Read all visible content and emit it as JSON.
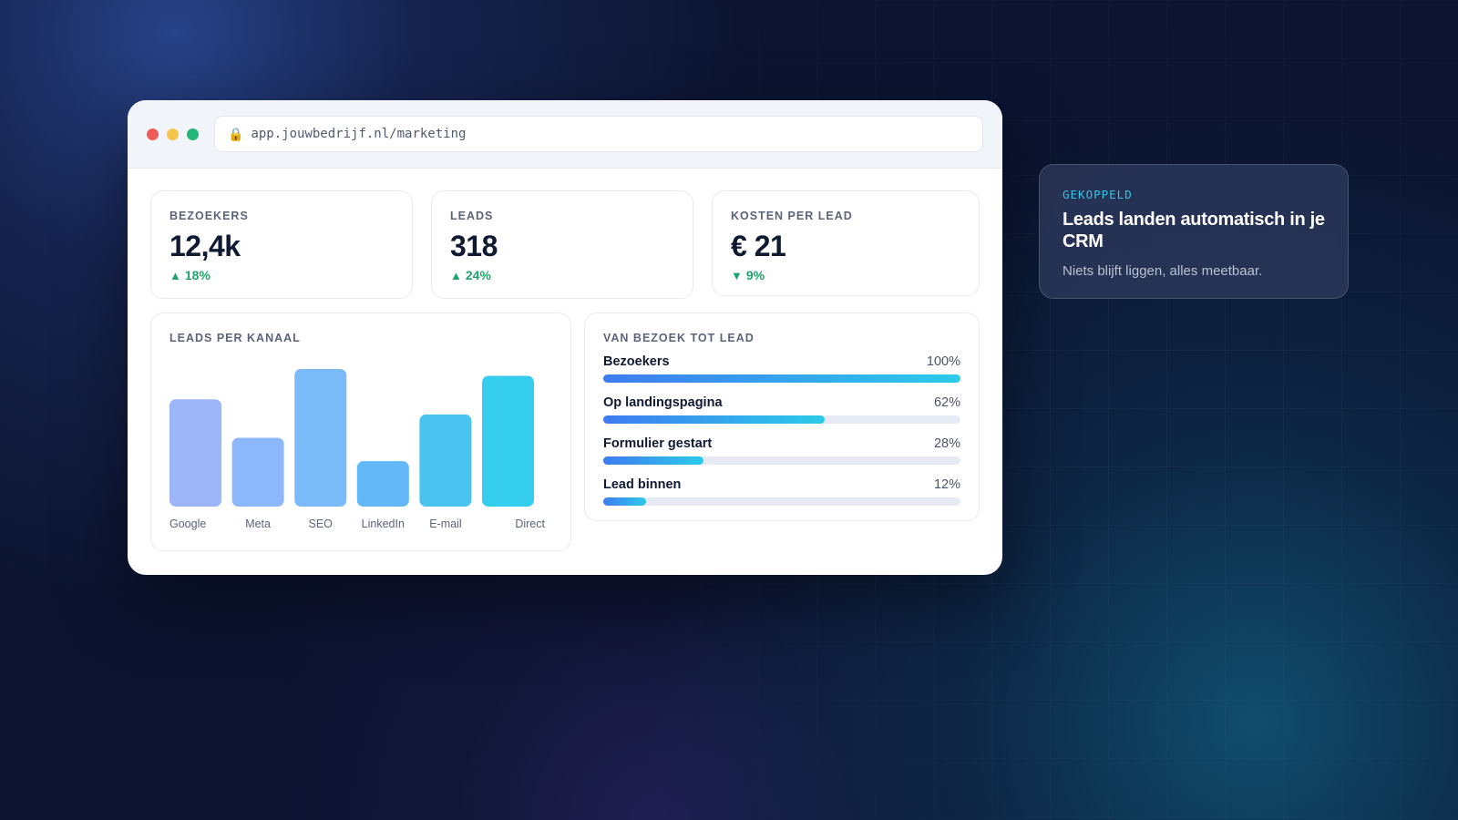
{
  "browser": {
    "url": "app.jouwbedrijf.nl/marketing",
    "dots": [
      "#ef5b5b",
      "#f6c54b",
      "#23b679"
    ],
    "lock_icon": "lock-icon"
  },
  "stats": [
    {
      "label": "BEZOEKERS",
      "value": "12,4k",
      "delta": "18%",
      "direction": "up"
    },
    {
      "label": "LEADS",
      "value": "318",
      "delta": "24%",
      "direction": "up"
    },
    {
      "label": "KOSTEN PER LEAD",
      "value": "€ 21",
      "delta": "9%",
      "direction": "down"
    }
  ],
  "channels": {
    "title": "LEADS PER KANAAL"
  },
  "funnel": {
    "title": "VAN BEZOEK TOT LEAD",
    "steps": [
      {
        "name": "Bezoekers",
        "pct": "100%",
        "value": 100
      },
      {
        "name": "Op landingspagina",
        "pct": "62%",
        "value": 62
      },
      {
        "name": "Formulier gestart",
        "pct": "28%",
        "value": 28
      },
      {
        "name": "Lead binnen",
        "pct": "12%",
        "value": 12
      }
    ]
  },
  "toast": {
    "tag": "GEKOPPELD",
    "title": "Leads landen automatisch in je CRM",
    "subtitle": "Niets blijft liggen, alles meetbaar."
  },
  "colors": {
    "accent": "#32c5e6",
    "positive": "#1fa36b"
  },
  "chart_data": {
    "type": "bar",
    "title": "LEADS PER KANAAL",
    "categories": [
      "Google",
      "Meta",
      "SEO",
      "LinkedIn",
      "E-mail",
      "Direct"
    ],
    "values": [
      78,
      50,
      100,
      33,
      67,
      95
    ],
    "ylim": [
      0,
      100
    ],
    "grid": false,
    "bar_colors": [
      "#9db6fa",
      "#8db7fb",
      "#7bbaf9",
      "#62b8f7",
      "#4bc3f1",
      "#35cdee"
    ]
  }
}
